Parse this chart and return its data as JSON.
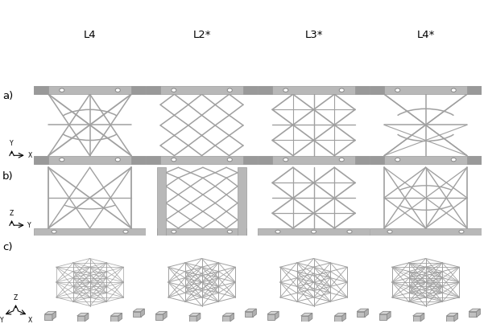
{
  "col_labels": [
    "L4",
    "L2*",
    "L3*",
    "L4*"
  ],
  "row_labels": [
    "a)",
    "b)",
    "c)"
  ],
  "bg_color": "#ffffff",
  "strut_color": "#a0a0a0",
  "plate_color": "#b8b8b8",
  "plate_dark": "#999999",
  "figsize": [
    6.01,
    4.08
  ],
  "dpi": 100
}
